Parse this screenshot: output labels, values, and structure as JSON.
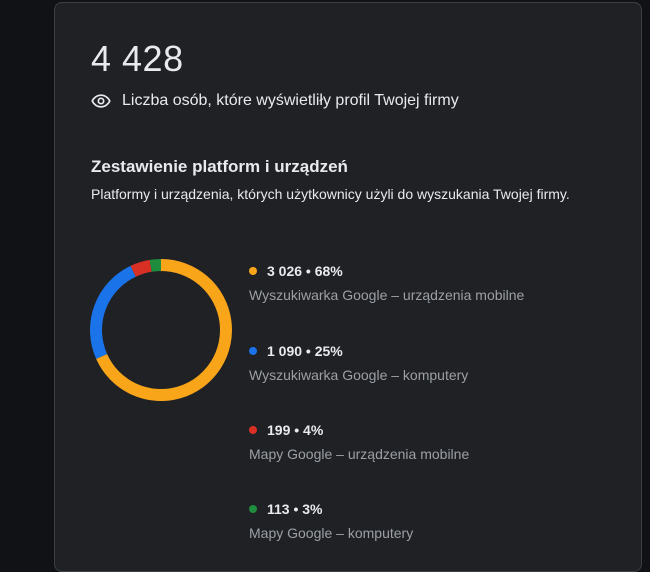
{
  "summary": {
    "total": "4 428",
    "views_label": "Liczba osób, które wyświetliły profil Twojej firmy",
    "icon": "eye-icon"
  },
  "breakdown": {
    "title": "Zestawienie platform i urządzeń",
    "description": "Platformy i urządzenia, których użytkownicy użyli do wyszukania Twojej firmy."
  },
  "colors": {
    "orange": "#f9a51a",
    "blue": "#1a73e8",
    "red": "#d93025",
    "green": "#1e8e3e"
  },
  "chart_data": {
    "type": "pie",
    "donut": true,
    "slices": [
      {
        "value": 3026,
        "percent": 68,
        "label": "Wyszukiwarka Google – urządzenia mobilne",
        "display": "3 026 • 68%",
        "color": "#f9a51a"
      },
      {
        "value": 1090,
        "percent": 25,
        "label": "Wyszukiwarka Google – komputery",
        "display": "1 090 • 25%",
        "color": "#1a73e8"
      },
      {
        "value": 199,
        "percent": 4,
        "label": "Mapy Google – urządzenia mobilne",
        "display": "199 • 4%",
        "color": "#d93025"
      },
      {
        "value": 113,
        "percent": 3,
        "label": "Mapy Google – komputery",
        "display": "113 • 3%",
        "color": "#1e8e3e"
      }
    ]
  }
}
